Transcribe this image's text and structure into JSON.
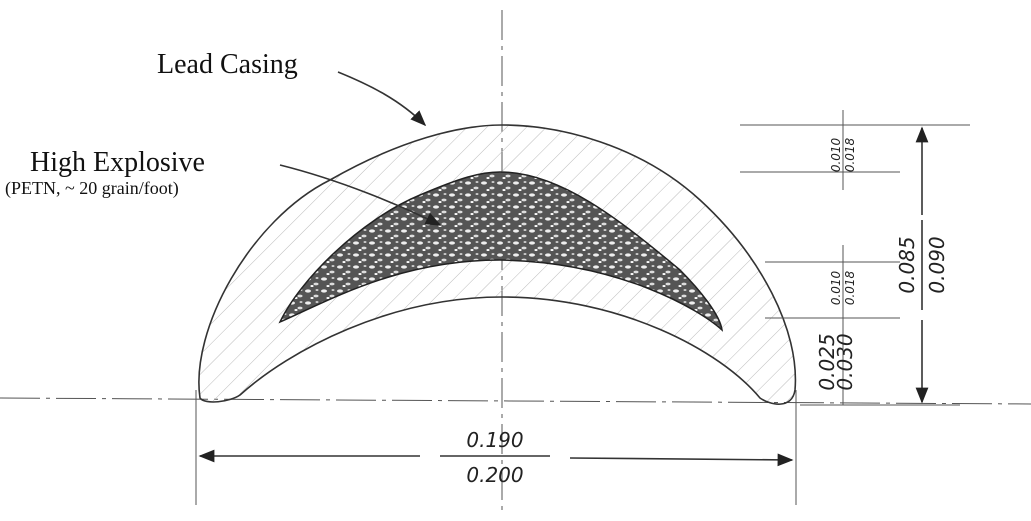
{
  "labels": {
    "lead_casing": "Lead Casing",
    "high_explosive": "High Explosive",
    "explosive_note": "(PETN, ~ 20 grain/foot)"
  },
  "dimensions": {
    "width": {
      "upper": "0.190",
      "lower": "0.200"
    },
    "height": {
      "upper": "0.085",
      "lower": "0.090"
    },
    "top_wall": {
      "upper": "0.010",
      "lower": "0.018"
    },
    "explosive_thickness": {
      "upper": "0.010",
      "lower": "0.018"
    },
    "bottom_wall": {
      "upper": "0.025",
      "lower": "0.030"
    }
  }
}
